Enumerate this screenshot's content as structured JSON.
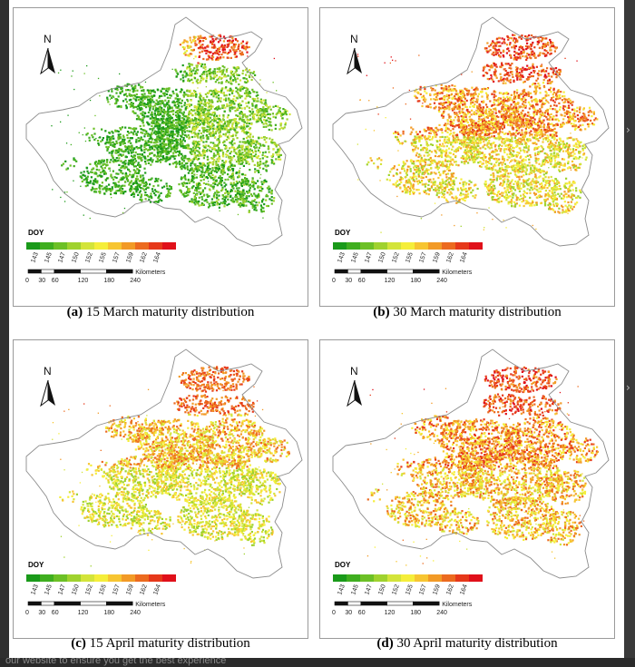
{
  "figure": {
    "panels": [
      {
        "id": "a",
        "letter": "(a)",
        "title": "15 March maturity distribution",
        "north": "N",
        "doy": "DOY"
      },
      {
        "id": "b",
        "letter": "(b)",
        "title": "30 March maturity distribution",
        "north": "N",
        "doy": "DOY"
      },
      {
        "id": "c",
        "letter": "(c)",
        "title": "15 April maturity distribution",
        "north": "N",
        "doy": "DOY"
      },
      {
        "id": "d",
        "letter": "(d)",
        "title": "30 April maturity distribution",
        "north": "N",
        "doy": "DOY"
      }
    ],
    "legend_ticks": [
      "143",
      "145",
      "147",
      "150",
      "152",
      "155",
      "157",
      "159",
      "162",
      "164"
    ],
    "legend_colors": [
      "#1a9a1a",
      "#3fae1f",
      "#6cc026",
      "#9fd22e",
      "#d3e43a",
      "#f5ee3a",
      "#f7c531",
      "#f29a26",
      "#ec6a1f",
      "#e6381a",
      "#e0101a"
    ],
    "scale_bar": {
      "unit": "Kilometers",
      "labels": [
        "0",
        "30",
        "60",
        "120",
        "180",
        "240"
      ]
    }
  },
  "page_footer_text": "our website to ensure you get the best experience"
}
